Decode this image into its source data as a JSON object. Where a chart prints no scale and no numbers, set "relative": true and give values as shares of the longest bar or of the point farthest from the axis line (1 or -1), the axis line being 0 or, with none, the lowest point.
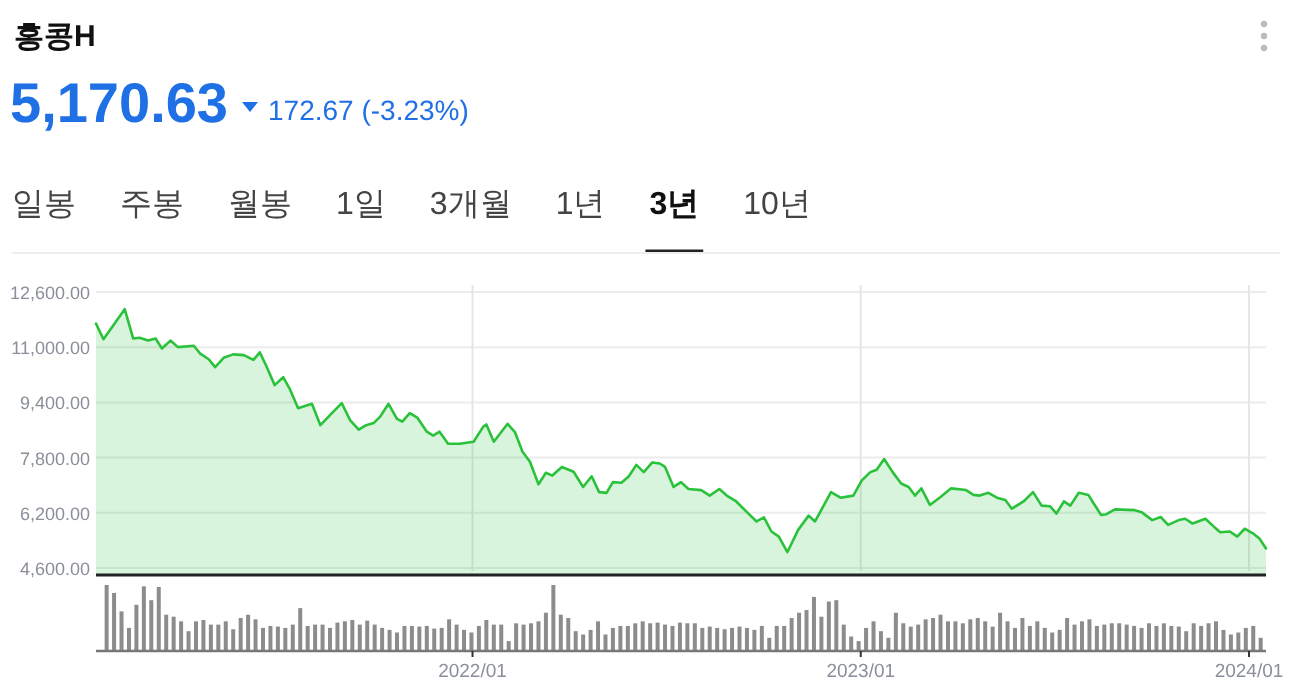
{
  "chart_data": [
    {
      "type": "area",
      "title": "홍콩H",
      "subtitle": "5,170.63",
      "annotations": [
        "172.67 (-3.23%)",
        "일봉",
        "주봉",
        "월봉",
        "1일",
        "3개월",
        "1년",
        "3년",
        "10년"
      ],
      "series": [
        {
          "color": "#2bc23b",
          "x": [
            "2021-01-12",
            "2021-01-19",
            "2021-02-08",
            "2021-02-16",
            "2021-02-22",
            "2021-03-02",
            "2021-03-09",
            "2021-03-15",
            "2021-03-23",
            "2021-03-30",
            "2021-04-14",
            "2021-04-20",
            "2021-04-28",
            "2021-05-04",
            "2021-05-12",
            "2021-05-21",
            "2021-05-31",
            "2021-06-09",
            "2021-06-15",
            "2021-06-21",
            "2021-06-29",
            "2021-07-07",
            "2021-07-13",
            "2021-07-21",
            "2021-08-03",
            "2021-08-11",
            "2021-08-20",
            "2021-08-31",
            "2021-09-08",
            "2021-09-16",
            "2021-09-23",
            "2021-09-30",
            "2021-10-06",
            "2021-10-14",
            "2021-10-22",
            "2021-10-27",
            "2021-11-03",
            "2021-11-10",
            "2021-11-19",
            "2021-11-25",
            "2021-12-01",
            "2021-12-09",
            "2021-12-20",
            "2022-01-02",
            "2022-01-11",
            "2022-01-14",
            "2022-01-21",
            "2022-02-03",
            "2022-02-10",
            "2022-02-17",
            "2022-02-24",
            "2022-03-04",
            "2022-03-11",
            "2022-03-17",
            "2022-03-26",
            "2022-04-06",
            "2022-04-15",
            "2022-04-23",
            "2022-04-30",
            "2022-05-07",
            "2022-05-13",
            "2022-05-21",
            "2022-05-28",
            "2022-06-04",
            "2022-06-11",
            "2022-06-19",
            "2022-06-26",
            "2022-07-01",
            "2022-07-09",
            "2022-07-16",
            "2022-07-23",
            "2022-08-04",
            "2022-08-12",
            "2022-08-21",
            "2022-08-28",
            "2022-09-06",
            "2022-09-16",
            "2022-09-25",
            "2022-10-02",
            "2022-10-09",
            "2022-10-16",
            "2022-10-24",
            "2022-11-03",
            "2022-11-13",
            "2022-11-19",
            "2022-12-04",
            "2022-12-13",
            "2022-12-25",
            "2023-01-02",
            "2023-01-10",
            "2023-01-16",
            "2023-01-23",
            "2023-01-31",
            "2023-02-08",
            "2023-02-15",
            "2023-02-21",
            "2023-02-27",
            "2023-03-07",
            "2023-03-17",
            "2023-03-27",
            "2023-04-10",
            "2023-04-17",
            "2023-04-23",
            "2023-05-01",
            "2023-05-09",
            "2023-05-17",
            "2023-05-23",
            "2023-06-03",
            "2023-06-12",
            "2023-06-20",
            "2023-06-28",
            "2023-07-04",
            "2023-07-11",
            "2023-07-17",
            "2023-07-25",
            "2023-08-03",
            "2023-08-08",
            "2023-08-15",
            "2023-08-20",
            "2023-08-28",
            "2023-09-15",
            "2023-09-22",
            "2023-10-02",
            "2023-10-10",
            "2023-10-17",
            "2023-10-27",
            "2023-11-02",
            "2023-11-09",
            "2023-11-21",
            "2023-11-29",
            "2023-12-05",
            "2023-12-14",
            "2023-12-21",
            "2023-12-28",
            "2024-01-05",
            "2024-01-11",
            "2024-01-17"
          ],
          "values": [
            11680,
            11230,
            12100,
            11250,
            11270,
            11190,
            11250,
            10960,
            11190,
            11000,
            11040,
            10810,
            10650,
            10420,
            10690,
            10790,
            10770,
            10630,
            10850,
            10460,
            9900,
            10130,
            9800,
            9230,
            9360,
            8740,
            9030,
            9380,
            8880,
            8610,
            8740,
            8800,
            8980,
            9360,
            8920,
            8840,
            9090,
            8960,
            8550,
            8440,
            8550,
            8200,
            8200,
            8260,
            8690,
            8760,
            8260,
            8780,
            8530,
            7970,
            7680,
            7030,
            7360,
            7280,
            7530,
            7390,
            6950,
            7260,
            6800,
            6780,
            7090,
            7070,
            7260,
            7590,
            7380,
            7660,
            7630,
            7530,
            6950,
            7090,
            6890,
            6860,
            6700,
            6890,
            6700,
            6530,
            6220,
            5950,
            6070,
            5660,
            5510,
            5060,
            5700,
            6120,
            5950,
            6800,
            6640,
            6700,
            7140,
            7380,
            7450,
            7760,
            7380,
            7050,
            6950,
            6700,
            6910,
            6430,
            6660,
            6910,
            6860,
            6720,
            6700,
            6780,
            6640,
            6570,
            6320,
            6530,
            6800,
            6410,
            6390,
            6180,
            6530,
            6410,
            6780,
            6720,
            6470,
            6140,
            6160,
            6300,
            6280,
            6220,
            5990,
            6080,
            5850,
            5990,
            6030,
            5890,
            6030,
            5800,
            5640,
            5660,
            5510,
            5740,
            5600,
            5450,
            5170
          ]
        }
      ],
      "xlim": [
        "2021-01-12",
        "2024-01-17"
      ],
      "xticks": [
        {
          "value": "2022-01-01",
          "label": null
        },
        {
          "value": "2023-01-01",
          "label": null
        },
        {
          "value": "2024-01-01",
          "label": null
        }
      ],
      "ylim": [
        4400,
        12800
      ],
      "yticks": [
        {
          "value": 4600,
          "label": "4,600.00"
        },
        {
          "value": 6200,
          "label": "6,200.00"
        },
        {
          "value": 7800,
          "label": "7,800.00"
        },
        {
          "value": 9400,
          "label": "9,400.00"
        },
        {
          "value": 11000,
          "label": "11,000.00"
        },
        {
          "value": 12600,
          "label": "12,600.00"
        }
      ],
      "grid": true,
      "tick_labels": "y"
    },
    {
      "type": "bar",
      "relative": true,
      "tick_labels": "x",
      "series": [
        {
          "color": "#8c8c8c",
          "x": [
            "2021-01-22",
            "2021-01-29",
            "2021-02-05",
            "2021-02-12",
            "2021-02-19",
            "2021-02-26",
            "2021-03-05",
            "2021-03-12",
            "2021-03-19",
            "2021-03-26",
            "2021-04-02",
            "2021-04-09",
            "2021-04-16",
            "2021-04-23",
            "2021-04-30",
            "2021-05-07",
            "2021-05-14",
            "2021-05-21",
            "2021-05-28",
            "2021-06-04",
            "2021-06-11",
            "2021-06-18",
            "2021-06-25",
            "2021-07-02",
            "2021-07-09",
            "2021-07-16",
            "2021-07-23",
            "2021-07-30",
            "2021-08-06",
            "2021-08-13",
            "2021-08-20",
            "2021-08-27",
            "2021-09-03",
            "2021-09-10",
            "2021-09-17",
            "2021-09-24",
            "2021-10-01",
            "2021-10-08",
            "2021-10-15",
            "2021-10-22",
            "2021-10-29",
            "2021-11-05",
            "2021-11-12",
            "2021-11-19",
            "2021-11-26",
            "2021-12-03",
            "2021-12-10",
            "2021-12-17",
            "2021-12-24",
            "2021-12-31",
            "2022-01-07",
            "2022-01-14",
            "2022-01-21",
            "2022-01-28",
            "2022-02-04",
            "2022-02-11",
            "2022-02-18",
            "2022-02-25",
            "2022-03-04",
            "2022-03-11",
            "2022-03-18",
            "2022-03-25",
            "2022-04-01",
            "2022-04-08",
            "2022-04-15",
            "2022-04-22",
            "2022-04-29",
            "2022-05-06",
            "2022-05-13",
            "2022-05-20",
            "2022-05-27",
            "2022-06-03",
            "2022-06-10",
            "2022-06-17",
            "2022-06-24",
            "2022-07-01",
            "2022-07-08",
            "2022-07-15",
            "2022-07-22",
            "2022-07-29",
            "2022-08-05",
            "2022-08-12",
            "2022-08-19",
            "2022-08-26",
            "2022-09-02",
            "2022-09-09",
            "2022-09-16",
            "2022-09-23",
            "2022-09-30",
            "2022-10-07",
            "2022-10-14",
            "2022-10-21",
            "2022-10-28",
            "2022-11-04",
            "2022-11-11",
            "2022-11-18",
            "2022-11-25",
            "2022-12-02",
            "2022-12-09",
            "2022-12-16",
            "2022-12-23",
            "2022-12-30",
            "2023-01-06",
            "2023-01-13",
            "2023-01-20",
            "2023-01-27",
            "2023-02-03",
            "2023-02-10",
            "2023-02-17",
            "2023-02-24",
            "2023-03-03",
            "2023-03-10",
            "2023-03-17",
            "2023-03-24",
            "2023-03-31",
            "2023-04-07",
            "2023-04-14",
            "2023-04-21",
            "2023-04-28",
            "2023-05-05",
            "2023-05-12",
            "2023-05-19",
            "2023-05-26",
            "2023-06-02",
            "2023-06-09",
            "2023-06-16",
            "2023-06-23",
            "2023-06-30",
            "2023-07-07",
            "2023-07-14",
            "2023-07-21",
            "2023-07-28",
            "2023-08-04",
            "2023-08-11",
            "2023-08-18",
            "2023-08-25",
            "2023-09-01",
            "2023-09-08",
            "2023-09-15",
            "2023-09-22",
            "2023-09-29",
            "2023-10-06",
            "2023-10-13",
            "2023-10-20",
            "2023-10-27",
            "2023-11-03",
            "2023-11-10",
            "2023-11-17",
            "2023-11-24",
            "2023-12-01",
            "2023-12-08",
            "2023-12-15",
            "2023-12-22",
            "2023-12-29",
            "2024-01-05",
            "2024-01-12"
          ],
          "values": [
            1.0,
            0.88,
            0.6,
            0.35,
            0.7,
            0.98,
            0.77,
            0.97,
            0.55,
            0.52,
            0.45,
            0.3,
            0.45,
            0.47,
            0.4,
            0.4,
            0.45,
            0.33,
            0.5,
            0.55,
            0.48,
            0.35,
            0.38,
            0.37,
            0.35,
            0.4,
            0.65,
            0.38,
            0.4,
            0.4,
            0.35,
            0.43,
            0.45,
            0.47,
            0.4,
            0.46,
            0.4,
            0.35,
            0.32,
            0.28,
            0.38,
            0.38,
            0.37,
            0.38,
            0.34,
            0.35,
            0.48,
            0.4,
            0.32,
            0.28,
            0.38,
            0.47,
            0.4,
            0.4,
            0.15,
            0.42,
            0.4,
            0.42,
            0.45,
            0.58,
            1.0,
            0.55,
            0.5,
            0.3,
            0.25,
            0.32,
            0.45,
            0.25,
            0.35,
            0.38,
            0.38,
            0.42,
            0.45,
            0.42,
            0.43,
            0.4,
            0.38,
            0.43,
            0.42,
            0.42,
            0.35,
            0.37,
            0.35,
            0.33,
            0.35,
            0.37,
            0.35,
            0.32,
            0.38,
            0.2,
            0.38,
            0.38,
            0.5,
            0.58,
            0.62,
            0.82,
            0.52,
            0.75,
            0.77,
            0.4,
            0.22,
            0.15,
            0.35,
            0.45,
            0.3,
            0.2,
            0.58,
            0.42,
            0.37,
            0.4,
            0.48,
            0.5,
            0.55,
            0.45,
            0.45,
            0.42,
            0.48,
            0.5,
            0.45,
            0.37,
            0.58,
            0.45,
            0.35,
            0.5,
            0.38,
            0.45,
            0.35,
            0.28,
            0.32,
            0.5,
            0.4,
            0.45,
            0.48,
            0.38,
            0.4,
            0.42,
            0.42,
            0.4,
            0.38,
            0.35,
            0.42,
            0.38,
            0.42,
            0.38,
            0.37,
            0.3,
            0.42,
            0.38,
            0.42,
            0.45,
            0.32,
            0.25,
            0.28,
            0.35,
            0.38,
            0.2
          ]
        }
      ],
      "xlim": [
        "2021-01-12",
        "2024-01-17"
      ],
      "xticks": [
        {
          "value": "2022-01-01",
          "label": "2022/01"
        },
        {
          "value": "2023-01-01",
          "label": "2023/01"
        },
        {
          "value": "2024-01-01",
          "label": "2024/01"
        }
      ]
    }
  ]
}
